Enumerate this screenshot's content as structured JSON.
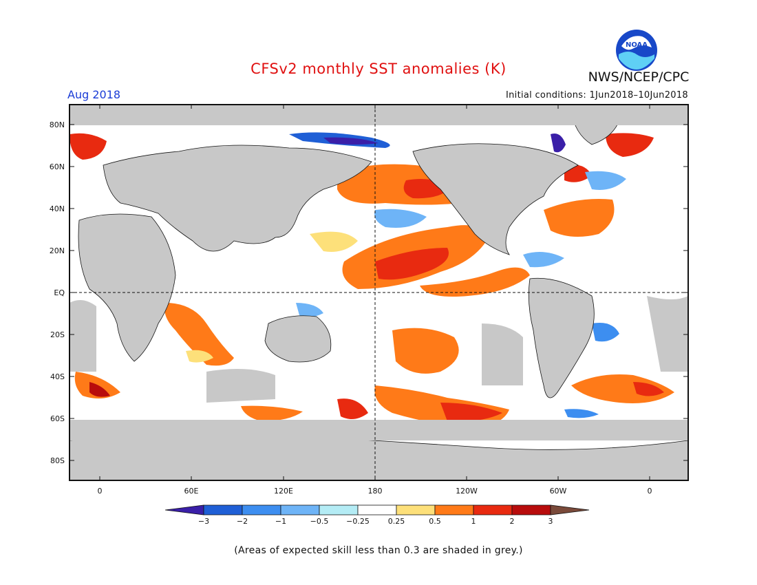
{
  "header": {
    "title": "CFSv2 monthly SST anomalies (K)",
    "agency": "NWS/NCEP/CPC",
    "logo_text": "NOAA",
    "month": "Aug 2018",
    "initial_conditions": "Initial conditions: 1Jun2018–10Jun2018"
  },
  "map": {
    "lat_labels": [
      "80N",
      "60N",
      "40N",
      "20N",
      "EQ",
      "20S",
      "40S",
      "60S",
      "80S"
    ],
    "lon_labels": [
      "0",
      "60E",
      "120E",
      "180",
      "120W",
      "60W",
      "0"
    ]
  },
  "colorbar": {
    "labels": [
      "−3",
      "−2",
      "−1",
      "−0.5",
      "−0.25",
      "0.25",
      "0.5",
      "1",
      "2",
      "3"
    ],
    "colors": [
      "#3a1fa8",
      "#1f5fd6",
      "#3d8ef0",
      "#6eb4f7",
      "#b4ecf5",
      "#ffffff",
      "#fde07a",
      "#ff7a18",
      "#e82a10",
      "#b80c0c",
      "#7a4a3a"
    ],
    "low_extend_color": "#3a1fa8",
    "high_extend_color": "#7a4a3a"
  },
  "colors": {
    "land": "#c8c8c8",
    "title": "#e01010",
    "month": "#1a3cd6"
  },
  "footnote": "(Areas of expected skill less than 0.3 are shaded in grey.)"
}
